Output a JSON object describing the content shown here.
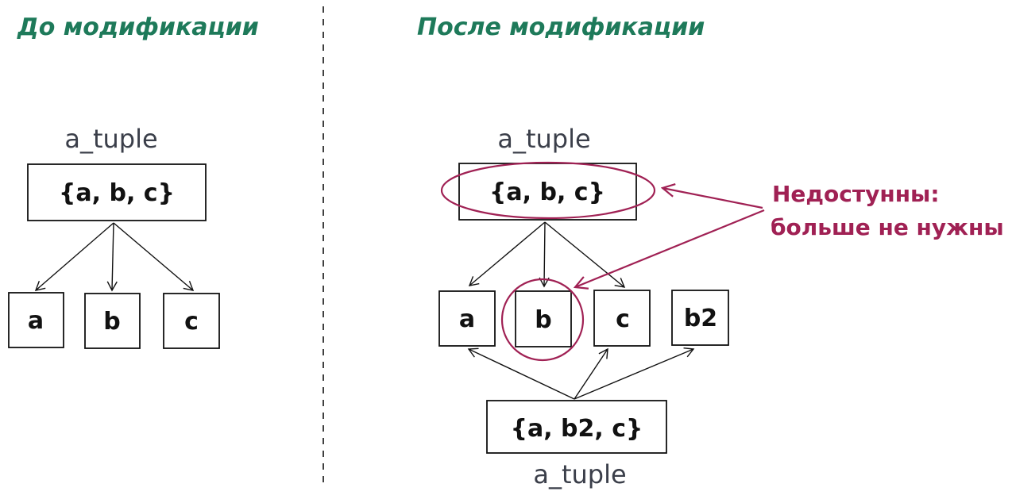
{
  "titles": {
    "before": "До модификации",
    "after": "После модификации"
  },
  "before": {
    "var_label": "a_tuple",
    "tuple_text": "{a, b, c}",
    "leaves": [
      "a",
      "b",
      "c"
    ]
  },
  "after": {
    "old_var_label": "a_tuple",
    "old_tuple_text": "{a, b, c}",
    "leaves": [
      "a",
      "b",
      "c",
      "b2"
    ],
    "new_tuple_text": "{a, b2, c}",
    "new_var_label": "a_tuple"
  },
  "annotation": {
    "line1": "Недостунны:",
    "line2": "больше не нужны"
  },
  "colors": {
    "title": "#1e7a5a",
    "annotation": "#a02154",
    "ink": "#111111",
    "label": "#3b3f4a"
  }
}
